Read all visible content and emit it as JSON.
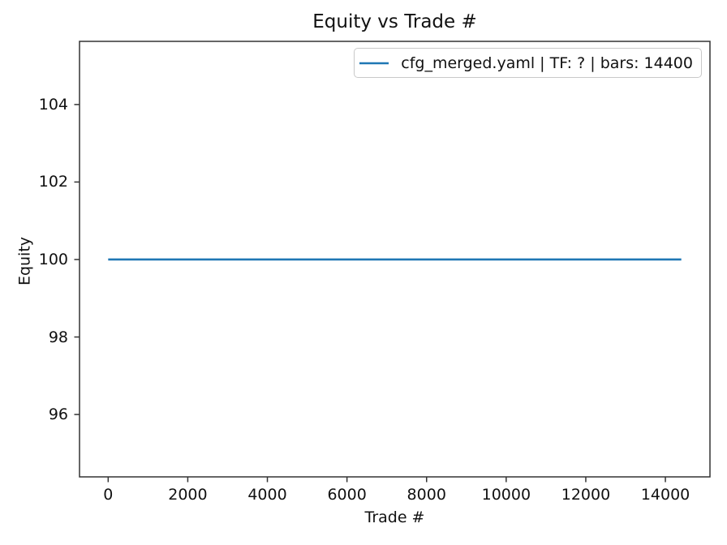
{
  "chart_data": {
    "type": "line",
    "title": "Equity vs Trade #",
    "xlabel": "Trade #",
    "ylabel": "Equity",
    "series": [
      {
        "name": "cfg_merged.yaml | TF: ? | bars: 14400",
        "color": "#1f77b4",
        "x": [
          0,
          14400
        ],
        "y": [
          100,
          100
        ]
      }
    ],
    "xlim": [
      -720,
      15120
    ],
    "ylim": [
      94.39,
      105.63
    ],
    "xticks": [
      0,
      2000,
      4000,
      6000,
      8000,
      10000,
      12000,
      14000
    ],
    "yticks": [
      96,
      98,
      100,
      102,
      104
    ],
    "grid": false,
    "legend_position": "upper right",
    "axis_color": "#333333",
    "background": "#ffffff"
  }
}
